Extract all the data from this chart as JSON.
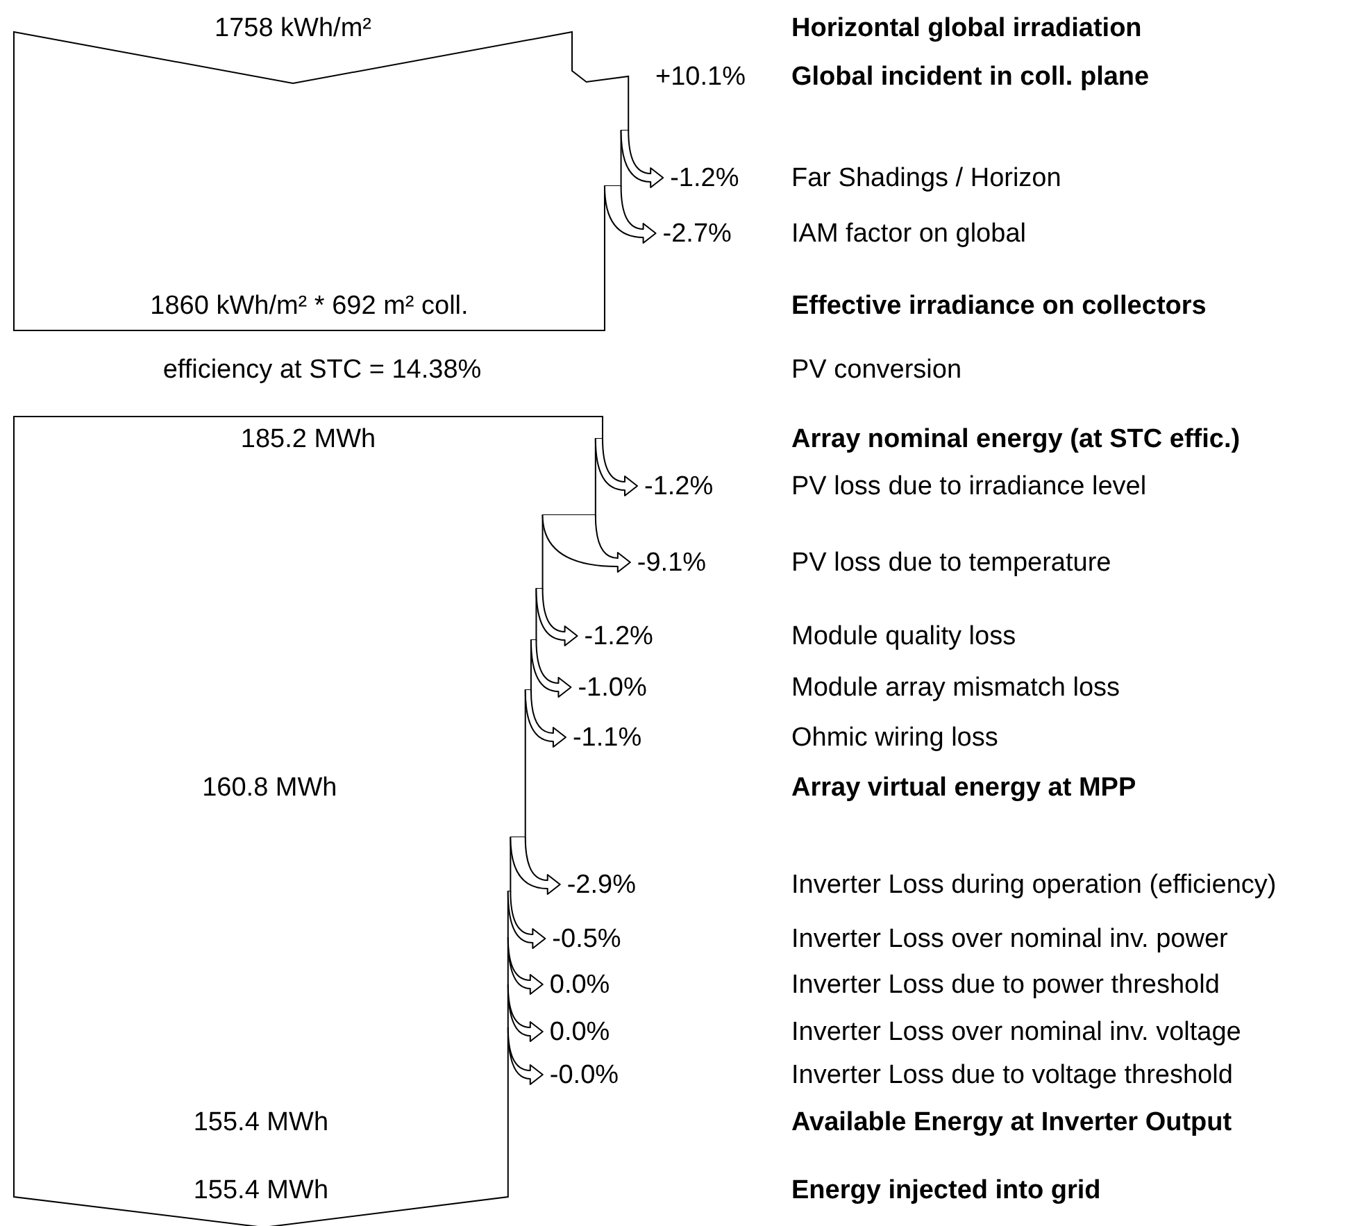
{
  "chart_data": {
    "type": "other",
    "categories": [
      "Horizontal global irradiation",
      "Global incident in coll. plane",
      "Far Shadings / Horizon",
      "IAM factor on global",
      "Effective irradiance on collectors",
      "PV conversion",
      "Array nominal energy (at STC effic.)",
      "PV loss due to irradiance level",
      "PV loss due to temperature",
      "Module quality loss",
      "Module array mismatch loss",
      "Ohmic wiring loss",
      "Array virtual energy at MPP",
      "Inverter Loss during operation (efficiency)",
      "Inverter Loss over nominal inv. power",
      "Inverter Loss due to power threshold",
      "Inverter Loss over nominal inv. voltage",
      "Inverter Loss due to voltage threshold",
      "Available Energy at Inverter Output",
      "Energy injected into grid"
    ],
    "series": [
      {
        "values": [
          1758,
          null,
          null,
          null,
          1860,
          null,
          185.2,
          null,
          null,
          null,
          null,
          null,
          160.8,
          null,
          null,
          null,
          null,
          null,
          155.4,
          155.4
        ],
        "value_labels": [
          "1758 kWh/m²",
          null,
          null,
          null,
          "1860 kWh/m² * 692 m² coll.",
          null,
          "185.2 MWh",
          null,
          null,
          null,
          null,
          null,
          "160.8 MWh",
          null,
          null,
          null,
          null,
          null,
          "155.4 MWh",
          "155.4 MWh"
        ]
      },
      {
        "values": [
          null,
          10.1,
          -1.2,
          -2.7,
          null,
          null,
          null,
          -1.2,
          -9.1,
          -1.2,
          -1.0,
          -1.1,
          null,
          -2.9,
          -0.5,
          0.0,
          0.0,
          -0.0,
          null,
          null
        ],
        "value_labels": [
          null,
          "+10.1%",
          "-1.2%",
          "-2.7%",
          null,
          null,
          null,
          "-1.2%",
          "-9.1%",
          "-1.2%",
          "-1.0%",
          "-1.1%",
          null,
          "-2.9%",
          "-0.5%",
          "0.0%",
          "0.0%",
          "-0.0%",
          null,
          null
        ]
      },
      {
        "values": [
          null,
          null,
          null,
          null,
          null,
          14.38,
          null,
          null,
          null,
          null,
          null,
          null,
          null,
          null,
          null,
          null,
          null,
          null,
          null,
          null
        ],
        "value_labels": [
          null,
          null,
          null,
          null,
          null,
          "efficiency at STC = 14.38%",
          null,
          null,
          null,
          null,
          null,
          null,
          null,
          null,
          null,
          null,
          null,
          null,
          null,
          null
        ]
      }
    ]
  }
}
